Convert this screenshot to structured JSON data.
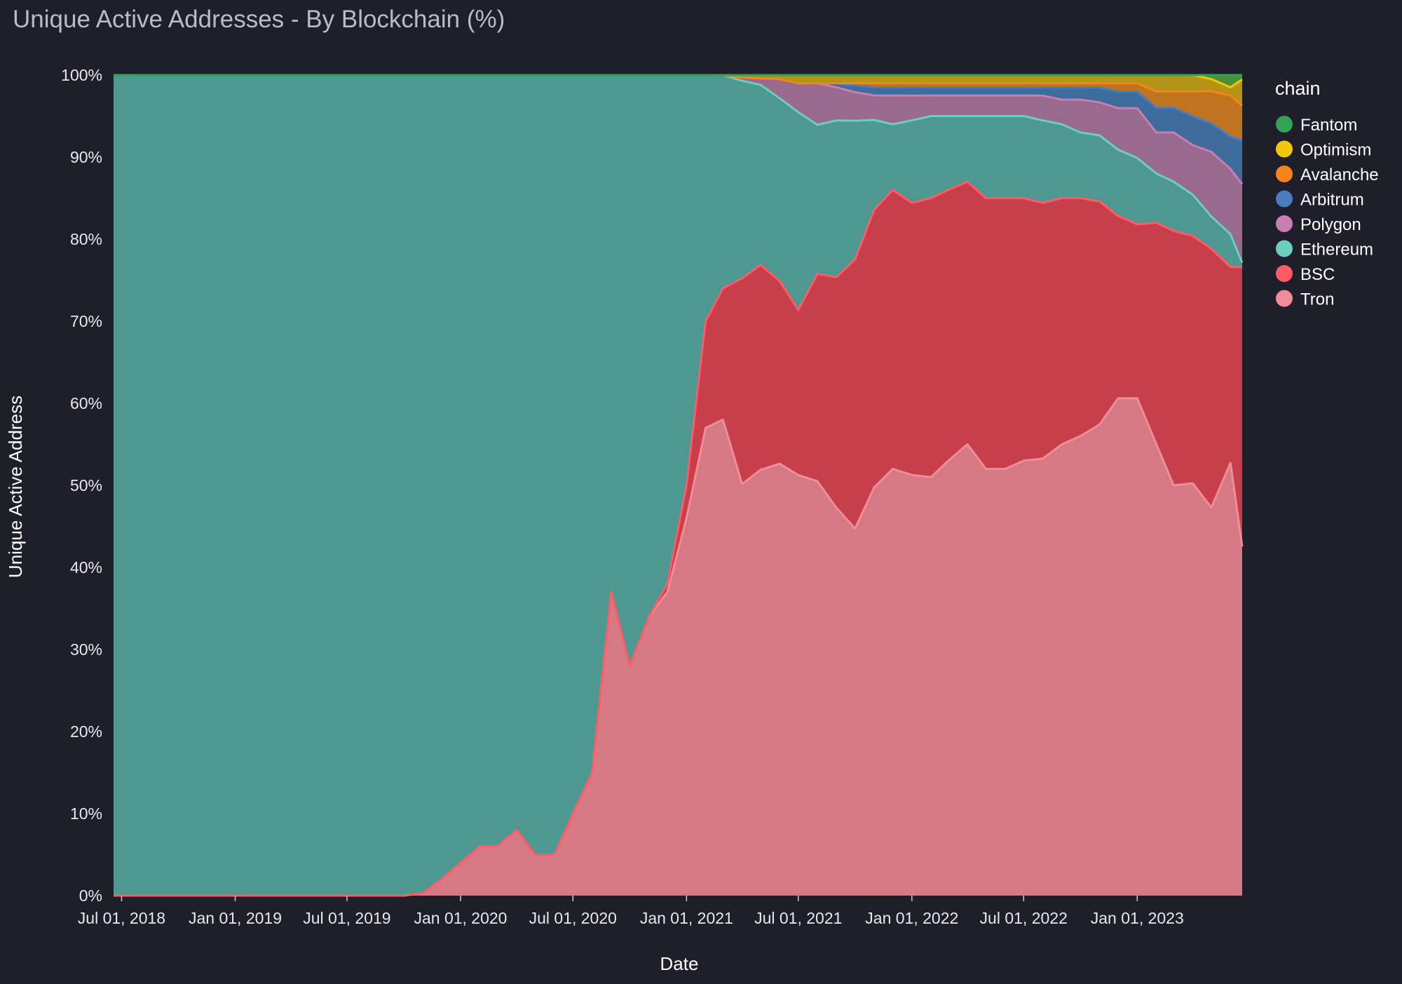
{
  "title": "Unique Active Addresses - By Blockchain (%)",
  "chart_data": {
    "type": "area",
    "stacked": true,
    "normalized_percent": true,
    "xlabel": "Date",
    "ylabel": "Unique Active Address",
    "ylim": [
      0,
      100
    ],
    "y_ticks": [
      "0%",
      "10%",
      "20%",
      "30%",
      "40%",
      "50%",
      "60%",
      "70%",
      "80%",
      "90%",
      "100%"
    ],
    "x_ticks": [
      "Jul 01, 2018",
      "Jan 01, 2019",
      "Jul 01, 2019",
      "Jan 01, 2020",
      "Jul 01, 2020",
      "Jan 01, 2021",
      "Jul 01, 2021",
      "Jan 01, 2022",
      "Jul 01, 2022",
      "Jan 01, 2023"
    ],
    "legend_title": "chain",
    "legend_position": "right",
    "x": [
      "2018-06-18",
      "2018-07-01",
      "2018-10-01",
      "2019-01-01",
      "2019-04-01",
      "2019-07-01",
      "2019-10-01",
      "2019-11-01",
      "2019-12-01",
      "2020-01-01",
      "2020-02-01",
      "2020-03-01",
      "2020-04-01",
      "2020-05-01",
      "2020-06-01",
      "2020-07-01",
      "2020-08-01",
      "2020-09-01",
      "2020-10-01",
      "2020-11-01",
      "2020-12-01",
      "2021-01-01",
      "2021-02-01",
      "2021-03-01",
      "2021-04-01",
      "2021-05-01",
      "2021-06-01",
      "2021-07-01",
      "2021-08-01",
      "2021-09-01",
      "2021-10-01",
      "2021-11-01",
      "2021-12-01",
      "2022-01-01",
      "2022-02-01",
      "2022-03-01",
      "2022-04-01",
      "2022-05-01",
      "2022-06-01",
      "2022-07-01",
      "2022-08-01",
      "2022-09-01",
      "2022-10-01",
      "2022-11-01",
      "2022-12-01",
      "2023-01-01",
      "2023-02-01",
      "2023-03-01",
      "2023-04-01",
      "2023-05-01",
      "2023-06-01",
      "2023-06-20"
    ],
    "series": [
      {
        "name": "Tron",
        "color": "#f08d98",
        "fill": "#d57985",
        "values": [
          0,
          0,
          0,
          0,
          0,
          0,
          0,
          0.3,
          2,
          4,
          6,
          6,
          8,
          5,
          5,
          10,
          15,
          37,
          28,
          34,
          37,
          46,
          57,
          58,
          50,
          52,
          52,
          51,
          50,
          47,
          45,
          50,
          52,
          51,
          51,
          53,
          55,
          52,
          52,
          53,
          53,
          55,
          56,
          57,
          60,
          60,
          55,
          50,
          50,
          48,
          53,
          40
        ]
      },
      {
        "name": "BSC",
        "color": "#ff5b66",
        "fill": "#c63f4a",
        "values": [
          0,
          0,
          0,
          0,
          0,
          0,
          0,
          0,
          0,
          0,
          0,
          0,
          0,
          0,
          0,
          0,
          0,
          0,
          0,
          0,
          1,
          4,
          13,
          16,
          25,
          25,
          22,
          20,
          25,
          28,
          33,
          34,
          34,
          33,
          34,
          33,
          32,
          33,
          33,
          32,
          31,
          30,
          29,
          27,
          22,
          21,
          27,
          31,
          30,
          32,
          24,
          32
        ]
      },
      {
        "name": "Ethereum",
        "color": "#6dcdc1",
        "fill": "#4f9791",
        "values": [
          100,
          100,
          100,
          100,
          100,
          100,
          100,
          99.7,
          98,
          96,
          94,
          94,
          92,
          95,
          95,
          90,
          85,
          63,
          72,
          66,
          62,
          50,
          30,
          26,
          24,
          22,
          22,
          24,
          18,
          19,
          17,
          11,
          8,
          10,
          10,
          9,
          8,
          10,
          10,
          10,
          10,
          9,
          8,
          8,
          8,
          8,
          6,
          6,
          5,
          4,
          4,
          0.5
        ]
      },
      {
        "name": "Polygon",
        "color": "#c57fb3",
        "fill": "#9a6a8e",
        "values": [
          0,
          0,
          0,
          0,
          0,
          0,
          0,
          0,
          0,
          0,
          0,
          0,
          0,
          0,
          0,
          0,
          0,
          0,
          0,
          0,
          0,
          0,
          0,
          0,
          0.4,
          0.8,
          2.3,
          3.5,
          5,
          4,
          3.5,
          3,
          3.5,
          3,
          2.5,
          2.5,
          2.5,
          2.5,
          2.5,
          2.5,
          3,
          3,
          4,
          4,
          5,
          6,
          5,
          6,
          6,
          8,
          8,
          9
        ]
      },
      {
        "name": "Arbitrum",
        "color": "#4a7cbc",
        "fill": "#3e6c9c",
        "values": [
          0,
          0,
          0,
          0,
          0,
          0,
          0,
          0,
          0,
          0,
          0,
          0,
          0,
          0,
          0,
          0,
          0,
          0,
          0,
          0,
          0,
          0,
          0,
          0,
          0,
          0,
          0,
          0,
          0,
          0.5,
          0.8,
          1,
          1,
          1,
          1,
          1,
          1,
          1,
          1,
          1,
          1,
          1.5,
          1.5,
          1.8,
          2,
          2,
          3,
          3,
          3.5,
          3.5,
          4,
          5
        ]
      },
      {
        "name": "Avalanche",
        "color": "#f58518",
        "fill": "#c0741f",
        "values": [
          0,
          0,
          0,
          0,
          0,
          0,
          0,
          0,
          0,
          0,
          0,
          0,
          0,
          0,
          0,
          0,
          0,
          0,
          0,
          0,
          0,
          0,
          0,
          0,
          0,
          0,
          0,
          0,
          0,
          0,
          0.3,
          0.5,
          0.5,
          0.5,
          0.5,
          0.5,
          0.5,
          0.5,
          0.5,
          0.5,
          0.5,
          0.5,
          0.5,
          0.5,
          1,
          1,
          2,
          2,
          3,
          4,
          5,
          4
        ]
      },
      {
        "name": "Optimism",
        "color": "#f2c707",
        "fill": "#b59318",
        "values": [
          0,
          0,
          0,
          0,
          0,
          0,
          0,
          0,
          0,
          0,
          0,
          0,
          0,
          0,
          0,
          0,
          0,
          0,
          0,
          0,
          0,
          0,
          0,
          0,
          0.3,
          0.4,
          0.5,
          1,
          1,
          1,
          1,
          1,
          1,
          1,
          1,
          1,
          1,
          1,
          1,
          1,
          1,
          1,
          1,
          1,
          1,
          1,
          2,
          2,
          2,
          1.5,
          1,
          3
        ]
      },
      {
        "name": "Fantom",
        "color": "#31a354",
        "fill": "#4c8f3a",
        "values": [
          0,
          0,
          0,
          0,
          0,
          0,
          0,
          0,
          0,
          0,
          0,
          0,
          0,
          0,
          0,
          0,
          0,
          0,
          0,
          0,
          0,
          0,
          0,
          0,
          0,
          0,
          0,
          0,
          0,
          0,
          0,
          0,
          0,
          0,
          0,
          0,
          0,
          0,
          0,
          0,
          0,
          0,
          0,
          0,
          0,
          0,
          0,
          0,
          0,
          0.5,
          1.5,
          0.5
        ]
      }
    ]
  }
}
